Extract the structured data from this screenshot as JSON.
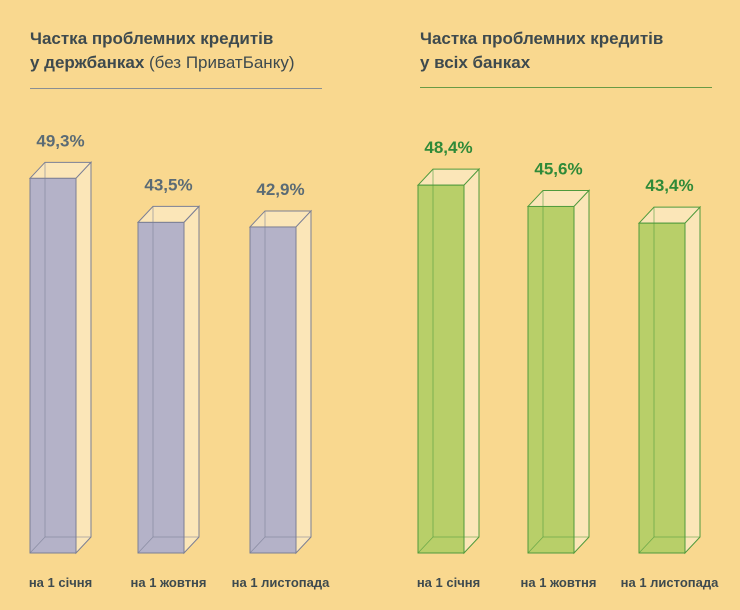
{
  "chart_data": [
    {
      "type": "bar",
      "title": "Частка проблемних кредитів у держбанках",
      "title_line1": "Частка проблемних кредитів",
      "title_line2": "у держбанках",
      "subtitle": "(без ПриватБанку)",
      "categories": [
        "на 1 січня",
        "на 1 жовтня",
        "на 1 листопада"
      ],
      "values": [
        49.3,
        43.5,
        42.9
      ],
      "data_labels": [
        "49,3%",
        "43,5%",
        "42,9%"
      ],
      "unit": "%",
      "style": "3d-box",
      "colors": {
        "fill": "#b4b2c8",
        "edge": "#7b7f95",
        "label": "#5b6b75",
        "rule": "#8a8f93"
      },
      "grid": false
    },
    {
      "type": "bar",
      "title": "Частка проблемних кредитів у всіх банках",
      "title_line1": "Частка проблемних кредитів",
      "title_line2": "у всіх банках",
      "categories": [
        "на 1 січня",
        "на 1 жовтня",
        "на 1 листопада"
      ],
      "values": [
        48.4,
        45.6,
        43.4
      ],
      "data_labels": [
        "48,4%",
        "45,6%",
        "43,4%"
      ],
      "unit": "%",
      "style": "3d-box",
      "colors": {
        "fill": "#b8cf69",
        "edge": "#4f9a3c",
        "label": "#2f8a38",
        "rule": "#6a9a45"
      },
      "grid": false
    }
  ]
}
